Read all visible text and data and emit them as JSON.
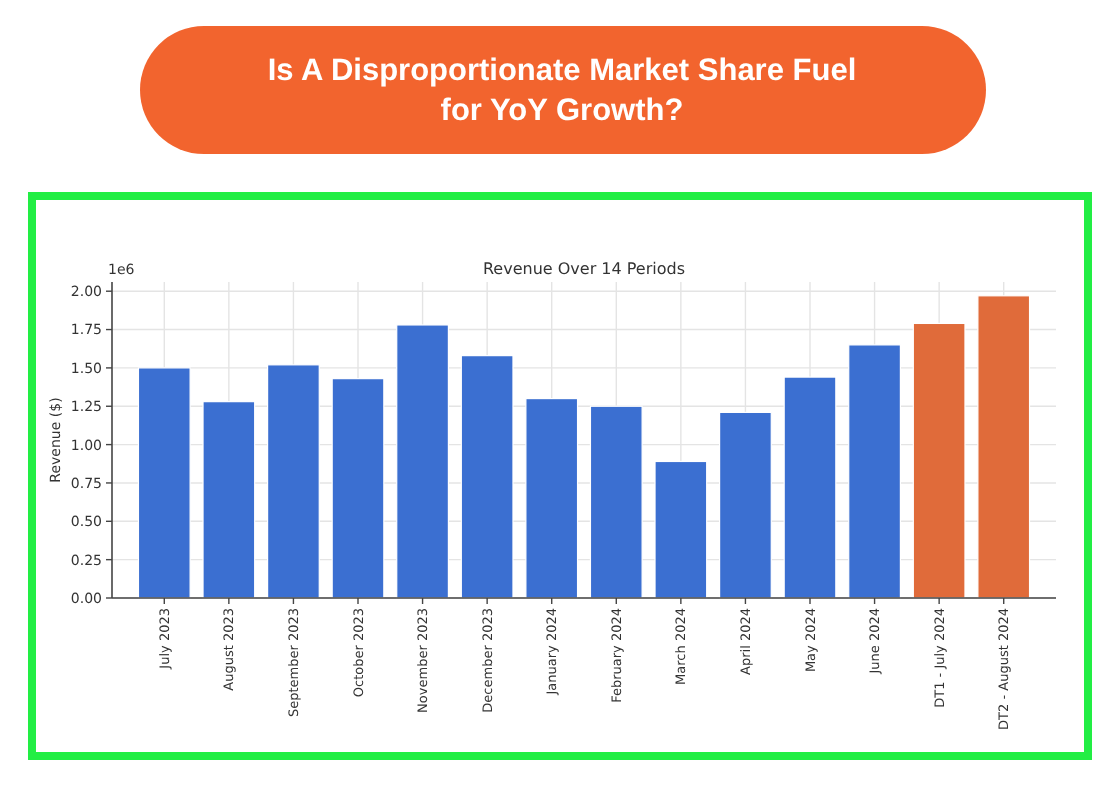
{
  "chart_data": {
    "type": "bar",
    "title": "Is A Disproportionate Market Share Fuel for YoY Growth?",
    "subtitle": "Revenue Over 14 Periods",
    "ylabel": "Revenue ($)",
    "categories": [
      "July 2023",
      "August 2023",
      "September 2023",
      "October 2023",
      "November 2023",
      "December 2023",
      "January 2024",
      "February 2024",
      "March 2024",
      "April 2024",
      "May 2024",
      "June 2024",
      "DT1 - July 2024",
      "DT2 - August 2024"
    ],
    "values": [
      1.5,
      1.28,
      1.52,
      1.43,
      1.78,
      1.58,
      1.3,
      1.25,
      0.89,
      1.21,
      1.44,
      1.65,
      1.79,
      1.97
    ],
    "colors": [
      "#3b6fd1",
      "#3b6fd1",
      "#3b6fd1",
      "#3b6fd1",
      "#3b6fd1",
      "#3b6fd1",
      "#3b6fd1",
      "#3b6fd1",
      "#3b6fd1",
      "#3b6fd1",
      "#3b6fd1",
      "#3b6fd1",
      "#e06b3a",
      "#e06b3a"
    ],
    "ylim": [
      0,
      2.06
    ],
    "yticks": [
      {
        "value": 0,
        "label": "0.00"
      },
      {
        "value": 0.25,
        "label": "0.25"
      },
      {
        "value": 0.5,
        "label": "0.50"
      },
      {
        "value": 0.75,
        "label": "0.75"
      },
      {
        "value": 1,
        "label": "1.00"
      },
      {
        "value": 1.25,
        "label": "1.25"
      },
      {
        "value": 1.5,
        "label": "1.50"
      },
      {
        "value": 1.75,
        "label": "1.75"
      },
      {
        "value": 2,
        "label": "2.00"
      }
    ],
    "annotations": [
      "1e6"
    ],
    "grid": true
  }
}
